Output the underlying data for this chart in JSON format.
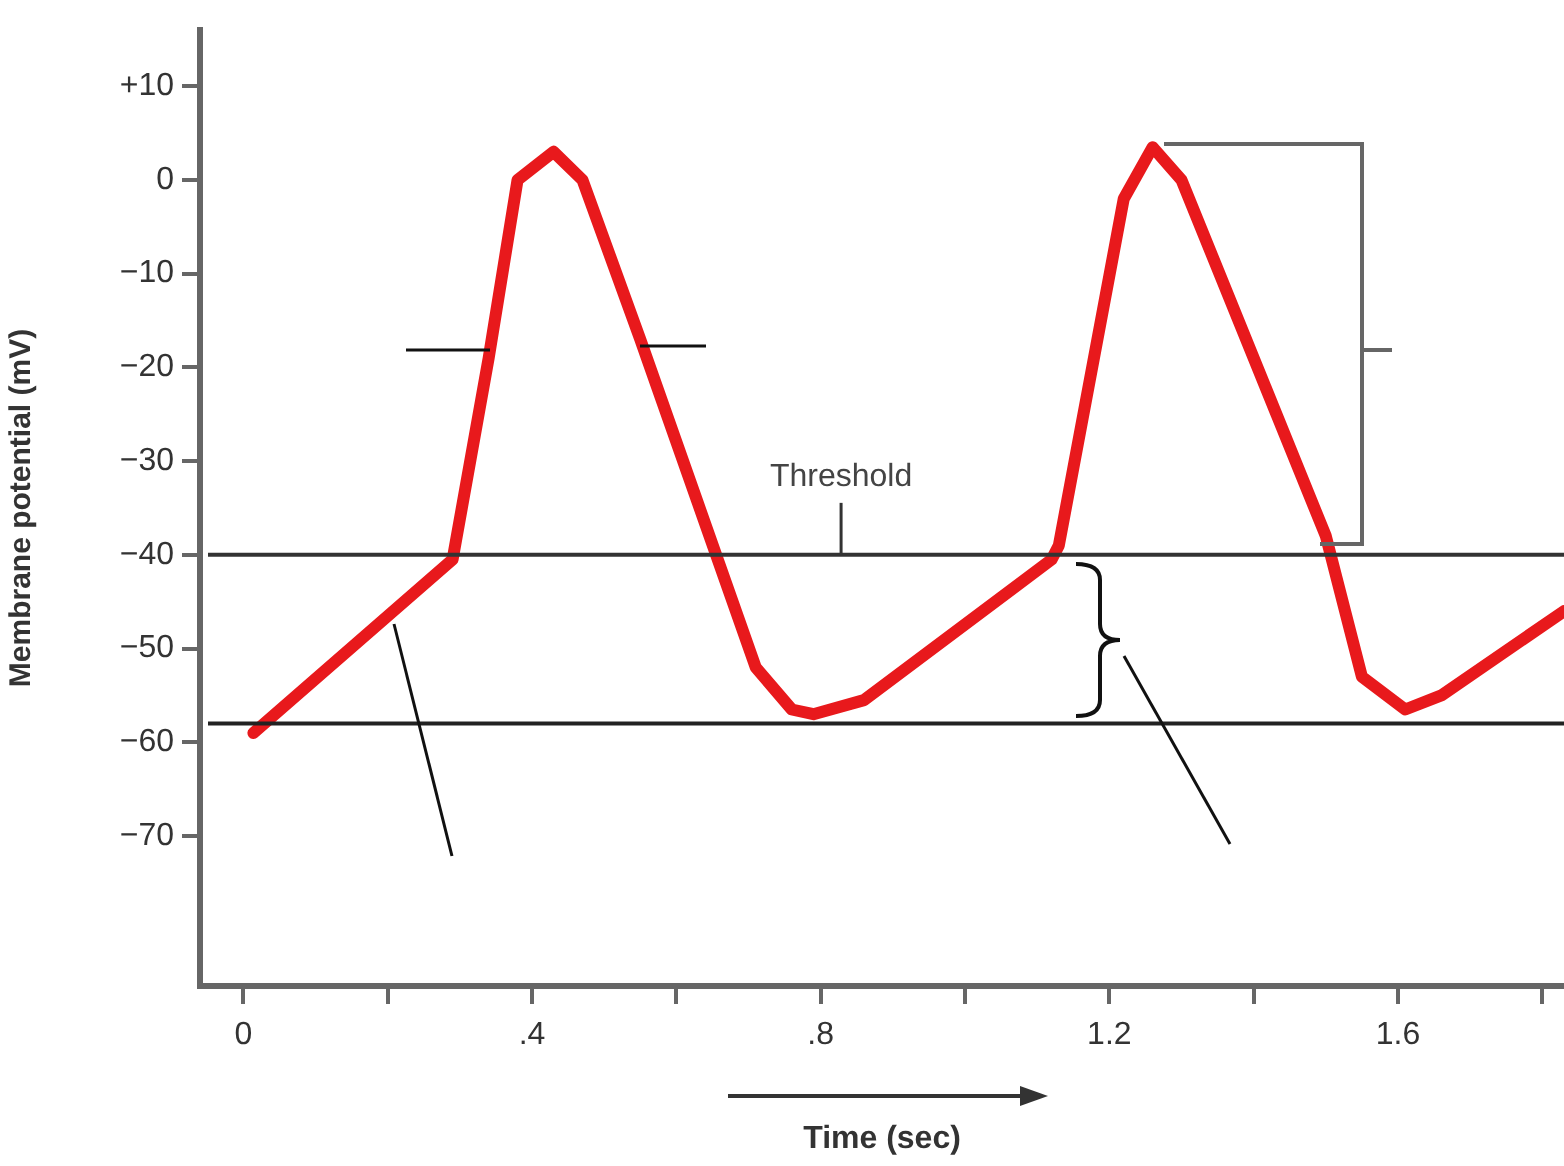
{
  "chart_data": {
    "type": "line",
    "xlabel": "Time (sec)",
    "ylabel": "Membrane potential (mV)",
    "x": [
      0.014,
      0.29,
      0.34,
      0.38,
      0.43,
      0.47,
      0.55,
      0.63,
      0.71,
      0.76,
      0.79,
      0.86,
      1.12,
      1.13,
      1.22,
      1.26,
      1.3,
      1.5,
      1.55,
      1.61,
      1.66,
      1.83
    ],
    "series": [
      {
        "color": "#e8191c",
        "values": [
          -59,
          -40.5,
          -19,
          0,
          3,
          0,
          -17,
          -34.5,
          -52,
          -56.5,
          -57,
          -55.5,
          -40.5,
          -39,
          -2,
          3.5,
          0,
          -38,
          -53,
          -56.5,
          -55,
          -46
        ]
      }
    ],
    "xlim": [
      -0.06,
      1.83
    ],
    "ylim": [
      -86,
      16
    ],
    "xticks": [
      0,
      {
        "value": 0.2,
        "label": null
      },
      {
        "value": 0.4,
        "label": ".4"
      },
      {
        "value": 0.6,
        "label": null
      },
      {
        "value": 0.8,
        "label": ".8"
      },
      {
        "value": 1,
        "label": null
      },
      {
        "value": 1.2,
        "label": "1.2"
      },
      {
        "value": 1.4,
        "label": null
      },
      {
        "value": 1.6,
        "label": "1.6"
      },
      {
        "value": 1.8,
        "label": null
      }
    ],
    "yticks": [
      {
        "value": 10,
        "label": "+10"
      },
      0,
      {
        "value": -10,
        "label": "−10"
      },
      {
        "value": -20,
        "label": "−20"
      },
      {
        "value": -30,
        "label": "−30"
      },
      {
        "value": -40,
        "label": "−40"
      },
      {
        "value": -50,
        "label": "−50"
      },
      {
        "value": -60,
        "label": "−60"
      },
      {
        "value": -70,
        "label": "−70"
      }
    ],
    "ref_lines": [
      {
        "axis": "y",
        "value": -40,
        "label": "Threshold",
        "color": "#333333"
      },
      {
        "axis": "y",
        "value": -58,
        "label": null,
        "color": "#222222"
      }
    ],
    "grid": false,
    "legend": false,
    "marker": "none",
    "line_style": "solid"
  }
}
